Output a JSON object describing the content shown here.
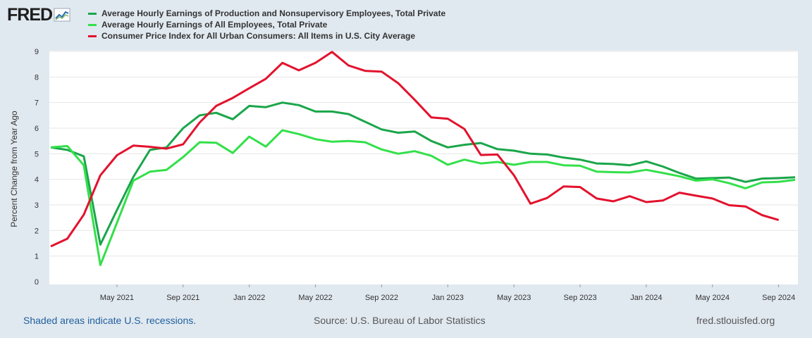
{
  "logo": {
    "text": "FRED"
  },
  "footer": {
    "recession_note": "Shaded areas indicate U.S. recessions.",
    "source": "Source: U.S. Bureau of Labor Statistics",
    "site": "fred.stlouisfed.org"
  },
  "chart_data": {
    "type": "line",
    "title": "",
    "xlabel": "",
    "ylabel": "Percent Change from Year Ago",
    "ylim": [
      0,
      9
    ],
    "yticks": [
      "0",
      "1",
      "2",
      "3",
      "4",
      "5",
      "6",
      "7",
      "8",
      "9"
    ],
    "x_start": "Jan 2021",
    "x_ticks": [
      {
        "label": "May 2021",
        "index": 4
      },
      {
        "label": "Sep 2021",
        "index": 8
      },
      {
        "label": "Jan 2022",
        "index": 12
      },
      {
        "label": "May 2022",
        "index": 16
      },
      {
        "label": "Sep 2022",
        "index": 20
      },
      {
        "label": "Jan 2023",
        "index": 24
      },
      {
        "label": "May 2023",
        "index": 28
      },
      {
        "label": "Sep 2023",
        "index": 32
      },
      {
        "label": "Jan 2024",
        "index": 36
      },
      {
        "label": "May 2024",
        "index": 40
      },
      {
        "label": "Sep 2024",
        "index": 44
      }
    ],
    "grid": true,
    "series": [
      {
        "name": "Average Hourly Earnings of Production and Nonsupervisory Employees, Total Private",
        "color": "#1aa64a",
        "values": [
          5.25,
          5.15,
          4.9,
          1.45,
          2.8,
          4.1,
          5.15,
          5.25,
          6.0,
          6.5,
          6.6,
          6.35,
          6.87,
          6.82,
          7.0,
          6.9,
          6.65,
          6.65,
          6.55,
          6.25,
          5.95,
          5.82,
          5.87,
          5.5,
          5.25,
          5.35,
          5.42,
          5.18,
          5.12,
          5.0,
          4.97,
          4.85,
          4.77,
          4.62,
          4.6,
          4.55,
          4.7,
          4.5,
          4.25,
          4.03,
          4.05,
          4.07,
          3.9,
          4.03,
          4.05,
          4.08
        ]
      },
      {
        "name": "Average Hourly Earnings of All Employees, Total Private",
        "color": "#33e04a",
        "values": [
          5.25,
          5.3,
          4.55,
          0.65,
          2.3,
          3.95,
          4.3,
          4.37,
          4.87,
          5.45,
          5.43,
          5.03,
          5.67,
          5.28,
          5.92,
          5.77,
          5.57,
          5.47,
          5.5,
          5.45,
          5.17,
          5.0,
          5.1,
          4.92,
          4.57,
          4.77,
          4.62,
          4.68,
          4.57,
          4.68,
          4.68,
          4.55,
          4.53,
          4.3,
          4.28,
          4.27,
          4.37,
          4.25,
          4.12,
          3.95,
          4.0,
          3.85,
          3.65,
          3.88,
          3.9,
          3.98
        ]
      },
      {
        "name": "Consumer Price Index for All Urban Consumers: All Items in U.S. City Average",
        "color": "#e3122d",
        "values": [
          1.38,
          1.68,
          2.62,
          4.16,
          4.94,
          5.32,
          5.27,
          5.2,
          5.37,
          6.22,
          6.87,
          7.18,
          7.56,
          7.93,
          8.55,
          8.26,
          8.55,
          8.98,
          8.45,
          8.24,
          8.21,
          7.76,
          7.11,
          6.42,
          6.37,
          5.97,
          4.95,
          4.97,
          4.16,
          3.05,
          3.27,
          3.72,
          3.7,
          3.25,
          3.14,
          3.34,
          3.11,
          3.17,
          3.48,
          3.36,
          3.25,
          2.99,
          2.94,
          2.6,
          2.41
        ]
      }
    ]
  }
}
